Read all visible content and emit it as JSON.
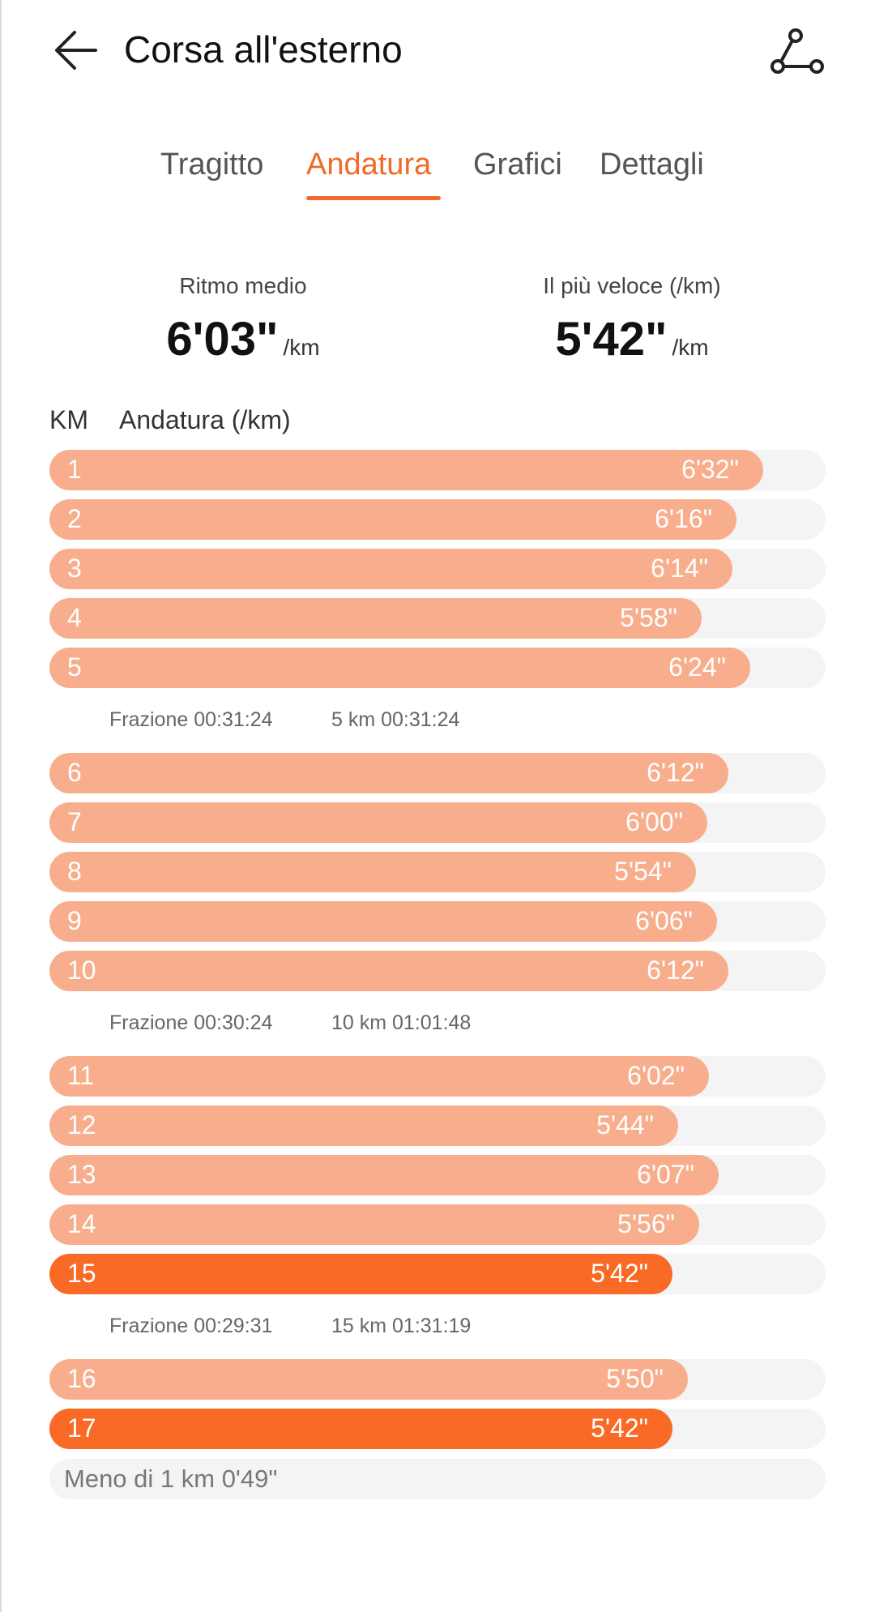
{
  "header": {
    "title": "Corsa all'esterno",
    "back_icon": "arrow-left-icon",
    "route_icon": "route-icon"
  },
  "tabs": [
    {
      "label": "Tragitto",
      "active": false
    },
    {
      "label": "Andatura",
      "active": true
    },
    {
      "label": "Grafici",
      "active": false
    },
    {
      "label": "Dettagli",
      "active": false
    }
  ],
  "summary": {
    "avg_label": "Ritmo medio",
    "avg_value": "6'03\"",
    "avg_unit": "/km",
    "fast_label": "Il più veloce (/km)",
    "fast_value": "5'42\"",
    "fast_unit": "/km"
  },
  "table": {
    "col_km": "KM",
    "col_pace": "Andatura (/km)"
  },
  "colors": {
    "accent": "#f06a2a",
    "bar": "#f8ae8d",
    "bar_fastest": "#f86a25",
    "track": "#f4f4f4"
  },
  "rows": [
    {
      "km": "1",
      "pace": "6'32\"",
      "fraction": 0.92,
      "fastest": false
    },
    {
      "km": "2",
      "pace": "6'16\"",
      "fraction": 0.885,
      "fastest": false
    },
    {
      "km": "3",
      "pace": "6'14\"",
      "fraction": 0.88,
      "fastest": false
    },
    {
      "km": "4",
      "pace": "5'58\"",
      "fraction": 0.84,
      "fastest": false
    },
    {
      "km": "5",
      "pace": "6'24\"",
      "fraction": 0.903,
      "fastest": false
    },
    {
      "km": "6",
      "pace": "6'12\"",
      "fraction": 0.875,
      "fastest": false
    },
    {
      "km": "7",
      "pace": "6'00\"",
      "fraction": 0.848,
      "fastest": false
    },
    {
      "km": "8",
      "pace": "5'54\"",
      "fraction": 0.833,
      "fastest": false
    },
    {
      "km": "9",
      "pace": "6'06\"",
      "fraction": 0.86,
      "fastest": false
    },
    {
      "km": "10",
      "pace": "6'12\"",
      "fraction": 0.875,
      "fastest": false
    },
    {
      "km": "11",
      "pace": "6'02\"",
      "fraction": 0.85,
      "fastest": false
    },
    {
      "km": "12",
      "pace": "5'44\"",
      "fraction": 0.81,
      "fastest": false
    },
    {
      "km": "13",
      "pace": "6'07\"",
      "fraction": 0.862,
      "fastest": false
    },
    {
      "km": "14",
      "pace": "5'56\"",
      "fraction": 0.837,
      "fastest": false
    },
    {
      "km": "15",
      "pace": "5'42\"",
      "fraction": 0.803,
      "fastest": true
    },
    {
      "km": "16",
      "pace": "5'50\"",
      "fraction": 0.823,
      "fastest": false
    },
    {
      "km": "17",
      "pace": "5'42\"",
      "fraction": 0.803,
      "fastest": true
    }
  ],
  "splits": [
    {
      "fraction_text": "Frazione 00:31:24",
      "cumulative_text": "5 km 00:31:24"
    },
    {
      "fraction_text": "Frazione 00:30:24",
      "cumulative_text": "10 km 01:01:48"
    },
    {
      "fraction_text": "Frazione 00:29:31",
      "cumulative_text": "15 km 01:31:19"
    }
  ],
  "remainder": "Meno di 1 km 0'49\""
}
